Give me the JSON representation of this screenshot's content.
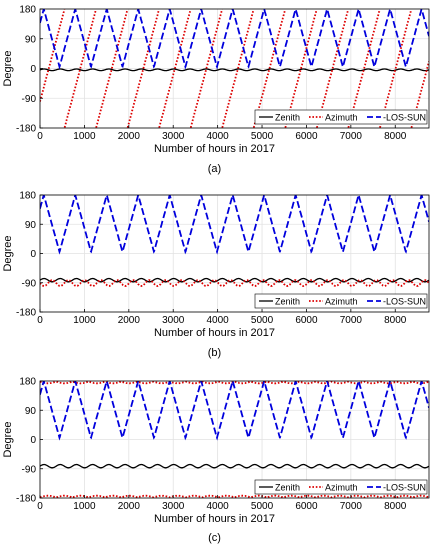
{
  "chart_data": [
    {
      "type": "line",
      "caption": "(a)",
      "xlabel": "Number of hours in 2017",
      "ylabel": "Degree",
      "xlim": [
        0,
        8760
      ],
      "ylim": [
        -180,
        180
      ],
      "xticks": [
        0,
        1000,
        2000,
        3000,
        4000,
        5000,
        6000,
        7000,
        8000
      ],
      "yticks": [
        -180,
        -90,
        0,
        90,
        180
      ],
      "grid": true,
      "legend_position": "bottom-right",
      "series": [
        {
          "name": "Zenith",
          "color": "#000000",
          "style": "solid",
          "kind": "sine",
          "mean": -4,
          "amp": 2.5,
          "period": 365,
          "phase": 0
        },
        {
          "name": "Azimuth",
          "color": "#dd0000",
          "style": "dotted",
          "kind": "wrap",
          "start": -100,
          "period": 710,
          "slope_per_hour": 0.507
        },
        {
          "name": "-LOS-SUN",
          "color": "#0000dd",
          "style": "dashed",
          "kind": "triangle",
          "min": 5,
          "max": 180,
          "period": 709,
          "phase": 0.88
        }
      ]
    },
    {
      "type": "line",
      "caption": "(b)",
      "xlabel": "Number of hours in 2017",
      "ylabel": "Degree",
      "xlim": [
        0,
        8760
      ],
      "ylim": [
        -180,
        180
      ],
      "xticks": [
        0,
        1000,
        2000,
        3000,
        4000,
        5000,
        6000,
        7000,
        8000
      ],
      "yticks": [
        -180,
        -90,
        0,
        90,
        180
      ],
      "grid": true,
      "legend_position": "bottom-right",
      "series": [
        {
          "name": "Zenith",
          "color": "#000000",
          "style": "solid",
          "kind": "sine",
          "mean": -82,
          "amp": 5,
          "period": 365,
          "phase": 0
        },
        {
          "name": "Azimuth",
          "color": "#dd0000",
          "style": "dotted",
          "kind": "sine",
          "mean": -91,
          "amp": 9,
          "period": 365,
          "phase": 0.5
        },
        {
          "name": "-LOS-SUN",
          "color": "#0000dd",
          "style": "dashed",
          "kind": "triangle",
          "min": 5,
          "max": 180,
          "period": 709,
          "phase": 0.88
        }
      ]
    },
    {
      "type": "line",
      "caption": "(c)",
      "xlabel": "Number of hours in 2017",
      "ylabel": "Degree",
      "xlim": [
        0,
        8760
      ],
      "ylim": [
        -180,
        180
      ],
      "xticks": [
        0,
        1000,
        2000,
        3000,
        4000,
        5000,
        6000,
        7000,
        8000
      ],
      "yticks": [
        -180,
        -90,
        0,
        90,
        180
      ],
      "grid": true,
      "legend_position": "bottom-right",
      "series": [
        {
          "name": "Zenith",
          "color": "#000000",
          "style": "solid",
          "kind": "sine",
          "mean": -82,
          "amp": 5,
          "period": 365,
          "phase": 0
        },
        {
          "name": "Azimuth",
          "color": "#dd0000",
          "style": "dotted",
          "kind": "rail",
          "levels": [
            178,
            -178
          ],
          "amp": 5,
          "period": 365
        },
        {
          "name": "-LOS-SUN",
          "color": "#0000dd",
          "style": "dashed",
          "kind": "triangle",
          "min": 5,
          "max": 180,
          "period": 709,
          "phase": 0.88
        }
      ]
    }
  ]
}
